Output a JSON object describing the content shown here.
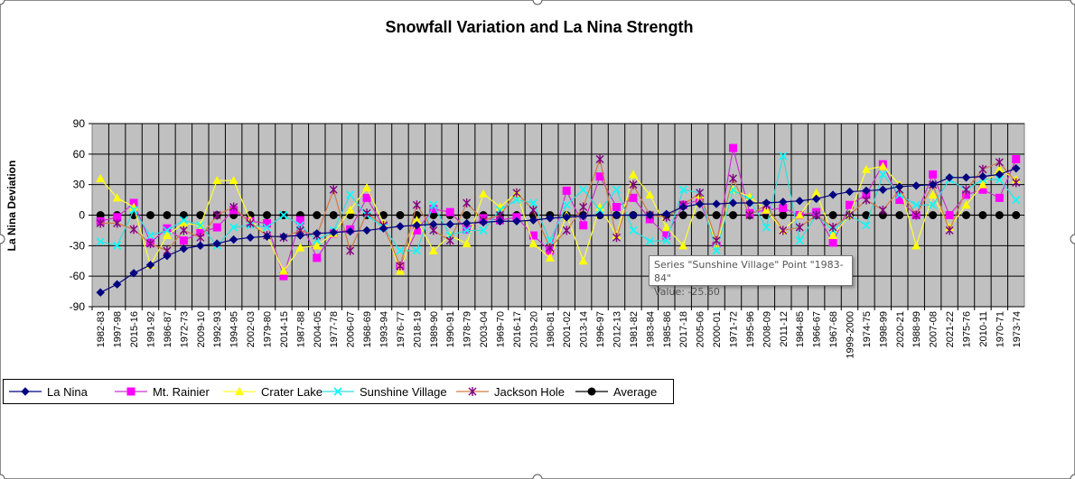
{
  "chart_data": {
    "type": "line",
    "title": "Snowfall Variation and La Nina Strength",
    "xlabel": "",
    "ylabel": "La Nina Deviation",
    "ylim": [
      -90,
      90
    ],
    "yticks": [
      90,
      60,
      30,
      0,
      -30,
      -60,
      -90
    ],
    "grid": true,
    "legend": "bottom-left",
    "categories": [
      "1982-83",
      "1997-98",
      "2015-16",
      "1991-92",
      "1986-87",
      "1972-73",
      "2009-10",
      "1992-93",
      "1994-95",
      "2002-03",
      "1979-80",
      "2014-15",
      "1987-88",
      "2004-05",
      "1977-78",
      "2006-07",
      "1968-69",
      "1993-94",
      "1976-77",
      "2018-19",
      "1989-90",
      "1990-91",
      "1978-79",
      "2003-04",
      "1969-70",
      "2016-17",
      "2019-20",
      "1980-81",
      "2001-02",
      "2013-14",
      "1996-97",
      "2012-13",
      "1981-82",
      "1983-84",
      "1985-86",
      "2017-18",
      "2005-06",
      "2000-01",
      "1971-72",
      "1995-96",
      "2008-09",
      "2011-12",
      "1984-85",
      "1966-67",
      "1967-68",
      "1999-2000",
      "1974-75",
      "1998-99",
      "2020-21",
      "1988-99",
      "2007-08",
      "2021-22",
      "1975-76",
      "2010-11",
      "1970-71",
      "1973-74"
    ],
    "series": [
      {
        "name": "La Nina",
        "color": "#000080",
        "marker": "diamond",
        "line": "#000080",
        "values": [
          -76,
          -68,
          -57,
          -49,
          -40,
          -33,
          -30,
          -28,
          -24,
          -22,
          -21,
          -21,
          -20,
          -18,
          -17,
          -16,
          -15,
          -13,
          -11,
          -10,
          -9,
          -9,
          -8,
          -7,
          -6,
          -6,
          -5,
          -3,
          -2,
          -1,
          0,
          0,
          0,
          0,
          1,
          8,
          11,
          11,
          12,
          12,
          12,
          13,
          14,
          16,
          20,
          23,
          24,
          25,
          28,
          29,
          30,
          37,
          37,
          38,
          40,
          46
        ]
      },
      {
        "name": "Mt. Rainier",
        "color": "#ff00ff",
        "marker": "square",
        "line": "#cc33cc",
        "values": [
          -6,
          -2,
          12,
          -27,
          -13,
          -25,
          -17,
          -12,
          5,
          -6,
          -8,
          -60,
          -5,
          -42,
          -18,
          -14,
          17,
          -11,
          -50,
          -15,
          6,
          3,
          -14,
          -3,
          -5,
          -2,
          -20,
          -35,
          24,
          -10,
          38,
          8,
          17,
          -4,
          -20,
          10,
          15,
          -30,
          66,
          2,
          5,
          7,
          0,
          3,
          -27,
          10,
          20,
          50,
          15,
          0,
          40,
          0,
          20,
          25,
          17,
          55
        ]
      },
      {
        "name": "Crater Lake",
        "color": "#ffff00",
        "marker": "triangle",
        "line": "#ffff33",
        "values": [
          36,
          17,
          8,
          -49,
          -20,
          -8,
          -10,
          34,
          34,
          -5,
          -20,
          -55,
          -32,
          -30,
          -18,
          5,
          27,
          -8,
          -55,
          -5,
          -35,
          -20,
          -28,
          21,
          8,
          22,
          -28,
          -42,
          0,
          -45,
          8,
          -20,
          40,
          20,
          -12,
          -30,
          20,
          -30,
          25,
          18,
          5,
          -15,
          0,
          22,
          -20,
          0,
          45,
          48,
          30,
          -30,
          20,
          -12,
          10,
          30,
          45,
          35
        ]
      },
      {
        "name": "Sunshine Village",
        "color": "#00ffff",
        "marker": "x",
        "line": "#33dddd",
        "values": [
          -26,
          -30,
          5,
          -20,
          -15,
          -5,
          -10,
          -30,
          -12,
          -10,
          -12,
          0,
          -10,
          -25,
          -15,
          20,
          0,
          -12,
          -35,
          -35,
          10,
          -20,
          -15,
          -15,
          5,
          15,
          12,
          -25,
          10,
          25,
          5,
          25,
          -15,
          -25.6,
          -25,
          25,
          22,
          -35,
          25,
          15,
          -12,
          58,
          -25,
          0,
          -15,
          0,
          -10,
          40,
          20,
          10,
          10,
          35,
          25,
          35,
          35,
          15
        ]
      },
      {
        "name": "Jackson Hole",
        "color": "#800080",
        "marker": "asterisk",
        "line": "#d07a45",
        "values": [
          -8,
          -8,
          -14,
          -28,
          -35,
          -15,
          -22,
          0,
          8,
          -8,
          -20,
          -22,
          -15,
          -20,
          25,
          -35,
          2,
          -10,
          -50,
          10,
          -15,
          -25,
          12,
          -5,
          0,
          22,
          5,
          -32,
          -15,
          8,
          55,
          -22,
          30,
          0,
          -2,
          10,
          22,
          -25,
          36,
          0,
          10,
          -15,
          -12,
          0,
          -12,
          0,
          15,
          5,
          25,
          0,
          30,
          -15,
          25,
          45,
          52,
          32
        ]
      },
      {
        "name": "Average",
        "color": "#000000",
        "marker": "circle",
        "line": "#000000",
        "values": [
          0,
          0,
          0,
          0,
          0,
          0,
          0,
          0,
          0,
          0,
          0,
          0,
          0,
          0,
          0,
          0,
          0,
          0,
          0,
          0,
          0,
          0,
          0,
          0,
          0,
          0,
          0,
          0,
          0,
          0,
          0,
          0,
          0,
          0,
          0,
          0,
          0,
          0,
          0,
          0,
          0,
          0,
          0,
          0,
          0,
          0,
          0,
          0,
          0,
          0,
          0,
          0,
          0,
          0,
          0,
          0
        ]
      }
    ]
  },
  "tooltip": {
    "line1": "Series \"Sunshine Village\" Point \"1983-84\"",
    "line2": "Value: -25.60"
  }
}
